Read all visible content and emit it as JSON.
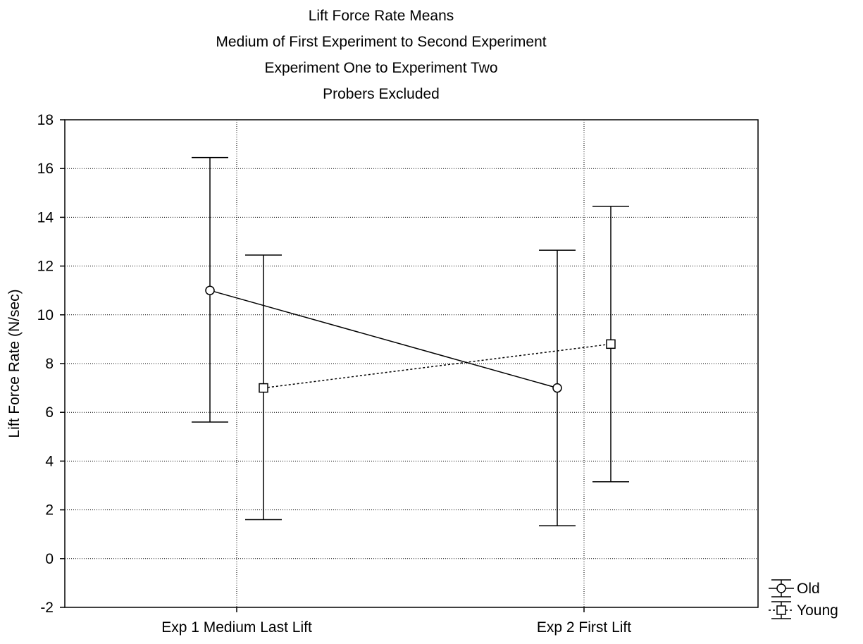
{
  "chart_data": {
    "type": "line",
    "title_lines": [
      "Lift Force Rate Means",
      "Medium of First Experiment to Second Experiment",
      "Experiment One to Experiment Two",
      "Probers Excluded"
    ],
    "xlabel": "",
    "ylabel": "Lift Force Rate (N/sec)",
    "categories": [
      "Exp 1 Medium Last Lift",
      "Exp 2 First Lift"
    ],
    "ylim": [
      -2,
      18
    ],
    "yticks": [
      -2,
      0,
      2,
      4,
      6,
      8,
      10,
      12,
      14,
      16,
      18
    ],
    "grid": true,
    "legend_position": "bottom-right",
    "series": [
      {
        "name": "Old",
        "marker": "circle",
        "line_style": "solid",
        "values": [
          11.0,
          7.0
        ],
        "error_low": [
          5.6,
          1.35
        ],
        "error_high": [
          16.45,
          12.65
        ]
      },
      {
        "name": "Young",
        "marker": "square",
        "line_style": "dotted",
        "values": [
          7.0,
          8.8
        ],
        "error_low": [
          1.6,
          3.15
        ],
        "error_high": [
          12.45,
          14.45
        ]
      }
    ]
  }
}
